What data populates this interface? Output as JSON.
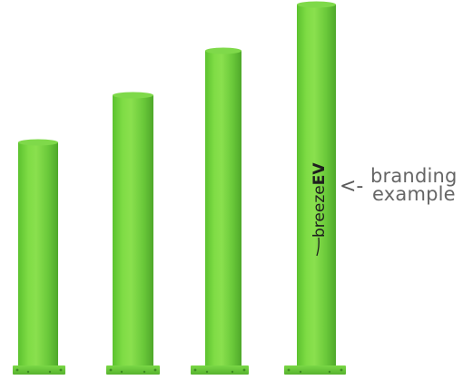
{
  "annotation": {
    "arrow": "<-",
    "line1": "branding",
    "line2": "example"
  },
  "logo": {
    "text_regular": "breeze",
    "text_bold": "EV"
  },
  "colors": {
    "post_light": "#8AE04E",
    "post_main": "#6CD13A",
    "post_dark": "#4FA82A",
    "base_plate": "#6CCB3C",
    "logo_text": "#1e1e1e",
    "annotation_text": "#666666"
  }
}
